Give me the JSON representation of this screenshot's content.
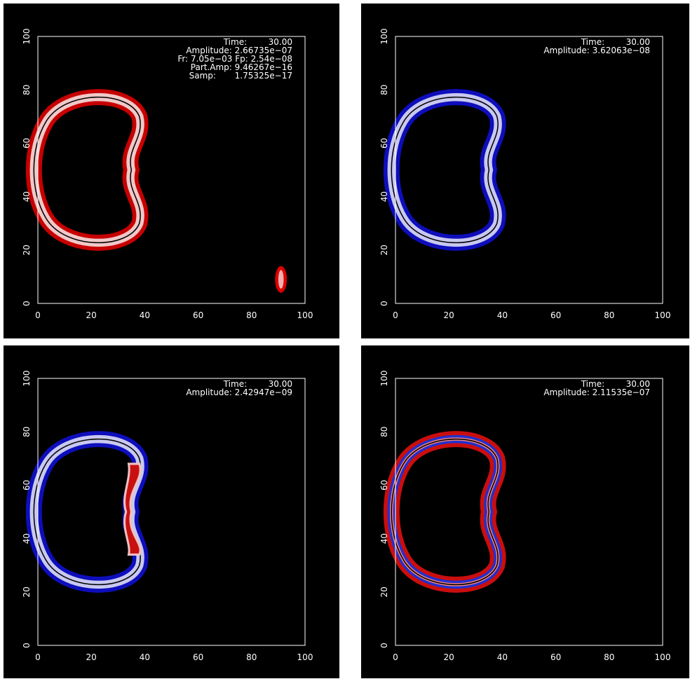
{
  "panels": [
    {
      "annotations": [
        "Time:        30.00",
        "Amplitude: 2.66735e−07",
        "Fr: 7.05e−03 Fp: 2.54e−08",
        "Part.Amp: 9.46267e−16",
        "Samp:       1.75325e−17"
      ],
      "xlim": [
        0,
        100
      ],
      "ylim": [
        0,
        100
      ],
      "xticks": [
        0,
        20,
        40,
        60,
        80,
        100
      ],
      "yticks": [
        0,
        20,
        40,
        60,
        80,
        100
      ]
    },
    {
      "annotations": [
        "Time:        30.00",
        "Amplitude: 3.62063e−08"
      ],
      "xlim": [
        0,
        100
      ],
      "ylim": [
        0,
        100
      ],
      "xticks": [
        0,
        20,
        40,
        60,
        80,
        100
      ],
      "yticks": [
        0,
        20,
        40,
        60,
        80,
        100
      ]
    },
    {
      "annotations": [
        "Time:        30.00",
        "Amplitude: 2.42947e−09"
      ],
      "xlim": [
        0,
        100
      ],
      "ylim": [
        0,
        100
      ],
      "xticks": [
        0,
        20,
        40,
        60,
        80,
        100
      ],
      "yticks": [
        0,
        20,
        40,
        60,
        80,
        100
      ]
    },
    {
      "annotations": [
        "Time:        30.00",
        "Amplitude: 2.11535e−07"
      ],
      "xlim": [
        0,
        100
      ],
      "ylim": [
        0,
        100
      ],
      "xticks": [
        0,
        20,
        40,
        60,
        80,
        100
      ],
      "yticks": [
        0,
        20,
        40,
        60,
        80,
        100
      ]
    }
  ]
}
